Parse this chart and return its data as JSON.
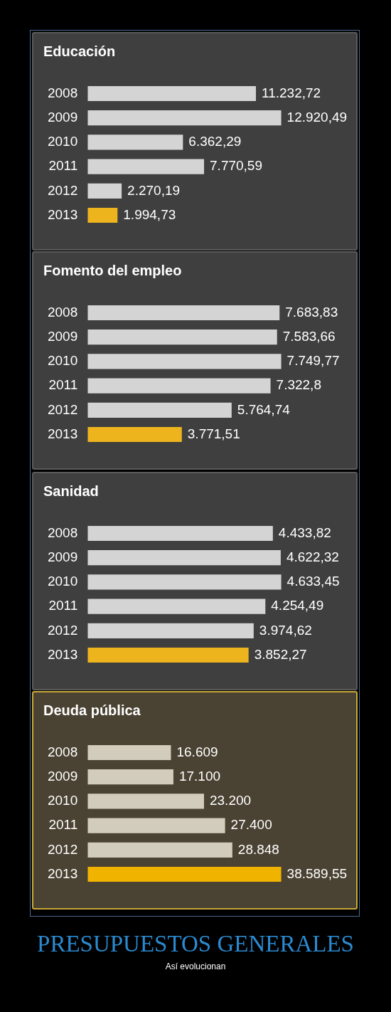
{
  "chart_data": [
    {
      "type": "bar",
      "orientation": "horizontal",
      "title": "Educación",
      "categories": [
        "2008",
        "2009",
        "2010",
        "2011",
        "2012",
        "2013"
      ],
      "values": [
        11232.72,
        12920.49,
        6362.29,
        7770.59,
        2270.19,
        1994.73
      ],
      "colors": [
        "#d4d4d4",
        "#d4d4d4",
        "#d4d4d4",
        "#d4d4d4",
        "#d4d4d4",
        "#eeb41e"
      ],
      "value_labels": [
        "11.232,72",
        "12.920,49",
        "6.362,29",
        "7.770,59",
        "2.270,19",
        "1.994,73"
      ]
    },
    {
      "type": "bar",
      "orientation": "horizontal",
      "title": "Fomento del empleo",
      "categories": [
        "2008",
        "2009",
        "2010",
        "2011",
        "2012",
        "2013"
      ],
      "values": [
        7683.83,
        7583.66,
        7749.77,
        7322.8,
        5764.74,
        3771.51
      ],
      "colors": [
        "#d4d4d4",
        "#d4d4d4",
        "#d4d4d4",
        "#d4d4d4",
        "#d4d4d4",
        "#eeb41e"
      ],
      "value_labels": [
        "7.683,83",
        "7.583,66",
        "7.749,77",
        "7.322,8",
        "5.764,74",
        "3.771,51"
      ]
    },
    {
      "type": "bar",
      "orientation": "horizontal",
      "title": "Sanidad",
      "categories": [
        "2008",
        "2009",
        "2010",
        "2011",
        "2012",
        "2013"
      ],
      "values": [
        4433.82,
        4622.32,
        4633.45,
        4254.49,
        3974.62,
        3852.27
      ],
      "colors": [
        "#d4d4d4",
        "#d4d4d4",
        "#d4d4d4",
        "#d4d4d4",
        "#d4d4d4",
        "#eeb41e"
      ],
      "value_labels": [
        "4.433,82",
        "4.622,32",
        "4.633,45",
        "4.254,49",
        "3.974,62",
        "3.852,27"
      ]
    },
    {
      "type": "bar",
      "orientation": "horizontal",
      "title": "Deuda pública",
      "categories": [
        "2008",
        "2009",
        "2010",
        "2011",
        "2012",
        "2013"
      ],
      "values": [
        16609,
        17100,
        23200,
        27400,
        28848,
        38589.55
      ],
      "colors": [
        "#d2ccbc",
        "#d2ccbc",
        "#d2ccbc",
        "#d2ccbc",
        "#d2ccbc",
        "#f0b400"
      ],
      "value_labels": [
        "16.609",
        "17.100",
        "23.200",
        "27.400",
        "28.848",
        "38.589,55"
      ]
    },
    {
      "type": "other",
      "title": "PRESUPUESTOS GENERALES",
      "subtitle": "Así evolucionan"
    }
  ]
}
